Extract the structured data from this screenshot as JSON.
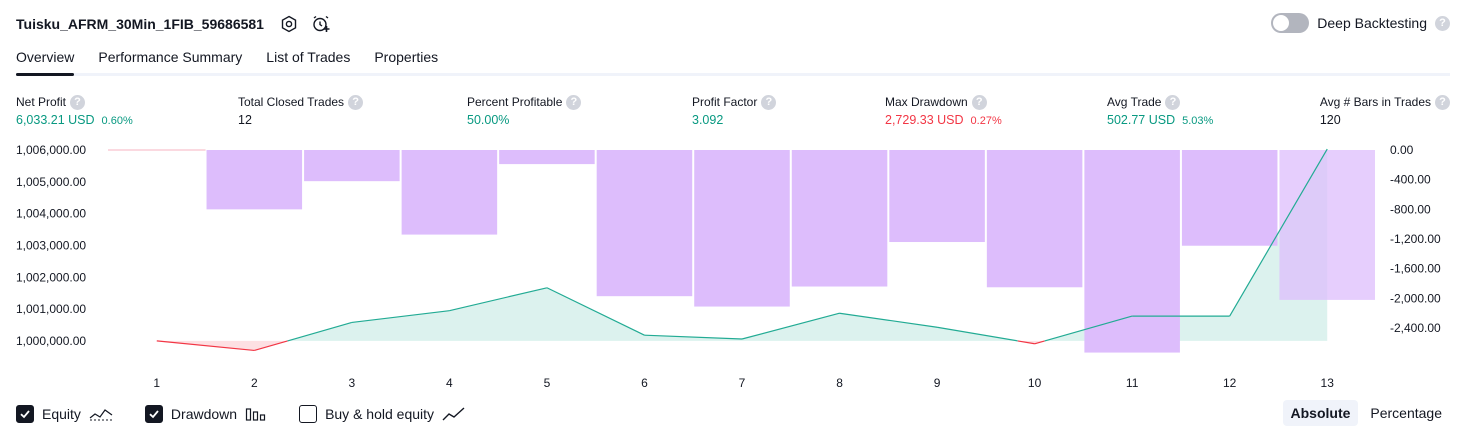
{
  "header": {
    "strategy_name": "Tuisku_AFRM_30Min_1FIB_59686581",
    "deep_backtesting_label": "Deep Backtesting",
    "help_glyph": "?"
  },
  "tabs": [
    {
      "label": "Overview",
      "active": true
    },
    {
      "label": "Performance Summary",
      "active": false
    },
    {
      "label": "List of Trades",
      "active": false
    },
    {
      "label": "Properties",
      "active": false
    }
  ],
  "metrics": [
    {
      "label": "Net Profit",
      "value": "6,033.21 USD",
      "pct": "0.60%",
      "color": "green"
    },
    {
      "label": "Total Closed Trades",
      "value": "12",
      "pct": "",
      "color": "dark"
    },
    {
      "label": "Percent Profitable",
      "value": "50.00%",
      "pct": "",
      "color": "green"
    },
    {
      "label": "Profit Factor",
      "value": "3.092",
      "pct": "",
      "color": "green"
    },
    {
      "label": "Max Drawdown",
      "value": "2,729.33 USD",
      "pct": "0.27%",
      "color": "red"
    },
    {
      "label": "Avg Trade",
      "value": "502.77 USD",
      "pct": "5.03%",
      "color": "green"
    },
    {
      "label": "Avg # Bars in Trades",
      "value": "120",
      "pct": "",
      "color": "dark"
    }
  ],
  "chart_data": {
    "type": "line",
    "x": [
      1,
      2,
      3,
      4,
      5,
      6,
      7,
      8,
      9,
      10,
      11,
      12,
      13
    ],
    "x_tick_labels": [
      "1",
      "2",
      "3",
      "4",
      "5",
      "6",
      "7",
      "8",
      "9",
      "10",
      "11",
      "12",
      "13"
    ],
    "series": [
      {
        "name": "Equity",
        "axis": "left",
        "values": [
          1000000,
          999700,
          1000580,
          1000950,
          1001670,
          1000180,
          1000060,
          1000870,
          1000430,
          999910,
          1000780,
          1000780,
          1006030
        ]
      },
      {
        "name": "Drawdown",
        "axis": "right",
        "kind": "bar",
        "values": [
          0,
          -800,
          -420,
          -1140,
          -190,
          -1970,
          -2110,
          -1840,
          -1240,
          -1850,
          -2730,
          -1290,
          -2020
        ]
      }
    ],
    "y_left": {
      "ticks": [
        "1,000,000.00",
        "1,001,000.00",
        "1,002,000.00",
        "1,003,000.00",
        "1,004,000.00",
        "1,005,000.00",
        "1,006,000.00"
      ],
      "ylim": [
        999400,
        1006000
      ]
    },
    "y_right": {
      "ticks": [
        "0.00",
        "-400.00",
        "-800.00",
        "-1,200.00",
        "-1,600.00",
        "-2,000.00",
        "-2,400.00"
      ],
      "ylim": [
        -2830,
        0
      ]
    },
    "colors": {
      "equity_up": "#22ab94",
      "equity_down": "#f23645",
      "equity_fill": "#dcf2ee",
      "equity_fill_down": "#fde0e3",
      "drawdown": "#ddbdfc"
    }
  },
  "footer": {
    "checkboxes": [
      {
        "label": "Equity",
        "checked": true
      },
      {
        "label": "Drawdown",
        "checked": true
      },
      {
        "label": "Buy & hold equity",
        "checked": false
      }
    ],
    "modes": [
      {
        "label": "Absolute",
        "active": true
      },
      {
        "label": "Percentage",
        "active": false
      }
    ]
  }
}
